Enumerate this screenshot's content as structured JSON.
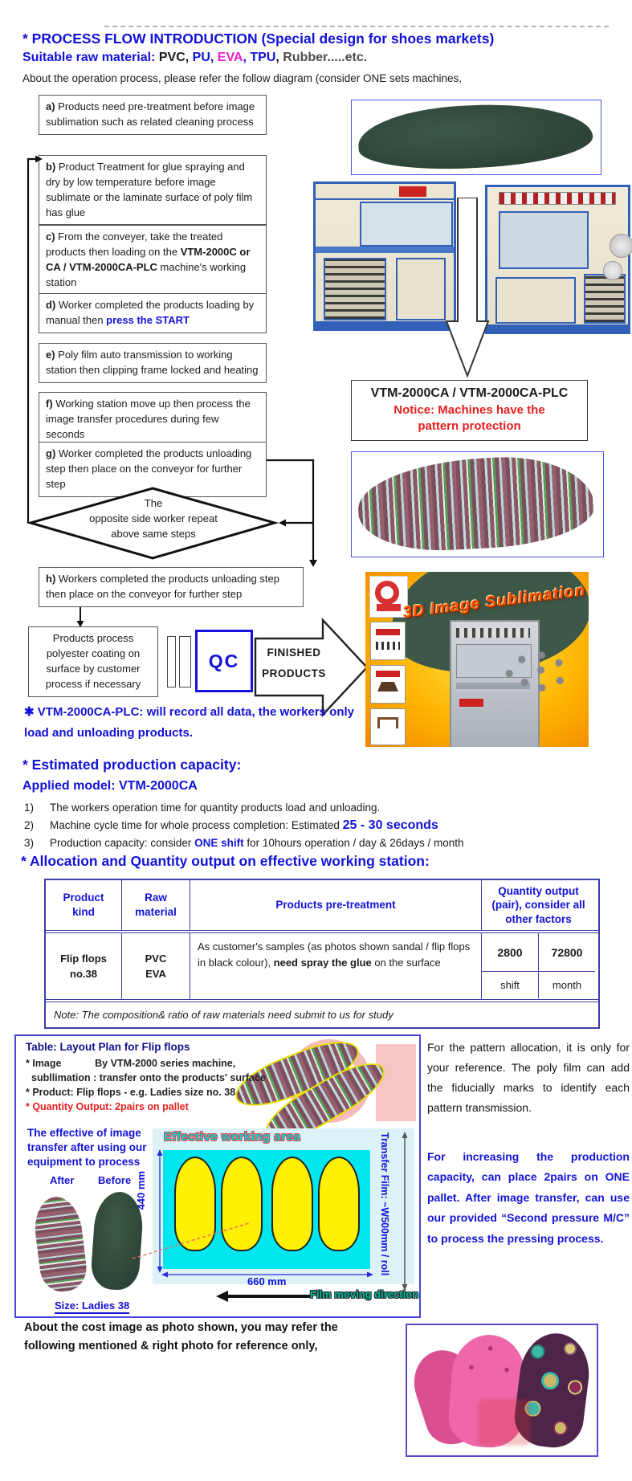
{
  "header": {
    "title": "* PROCESS FLOW INTRODUCTION (Special design for shoes markets)",
    "subtitle_segments": [
      {
        "t": "Suitable raw material: ",
        "s": "blue-b"
      },
      {
        "t": "PVC",
        "s": "b"
      },
      {
        "t": ", ",
        "s": "b"
      },
      {
        "t": "PU",
        "s": "blue-b"
      },
      {
        "t": ", ",
        "s": "blue-b"
      },
      {
        "t": "EVA",
        "s": "mag-b"
      },
      {
        "t": ", ",
        "s": "blue-b"
      },
      {
        "t": "TPU",
        "s": "blue-b"
      },
      {
        "t": ", ",
        "s": "b"
      },
      {
        "t": "Rubber.....etc.",
        "s": "gray-b"
      }
    ],
    "intro": "About the operation process, please refer the follow diagram (consider ONE sets machines,"
  },
  "flowchart": {
    "box_a_segments": [
      {
        "t": "a) ",
        "s": "b"
      },
      {
        "t": "Products need pre-treatment before image sublimation such as related cleaning process",
        "s": "n"
      }
    ],
    "box_b_segments": [
      {
        "t": "b) ",
        "s": "b"
      },
      {
        "t": "Product Treatment for glue spraying and dry by low temperature before image sublimate or the laminate surface of poly film has glue",
        "s": "n"
      }
    ],
    "box_c_segments": [
      {
        "t": "c) ",
        "s": "b"
      },
      {
        "t": "From the conveyer, take the treated products then loading on the ",
        "s": "n"
      },
      {
        "t": "VTM-2000C or CA / VTM-2000CA-PLC",
        "s": "b"
      },
      {
        "t": " machine's working station",
        "s": "n"
      }
    ],
    "box_d_segments": [
      {
        "t": "d) ",
        "s": "b"
      },
      {
        "t": "Worker completed the products loading by manual then ",
        "s": "n"
      },
      {
        "t": "press the START",
        "s": "blue-b"
      }
    ],
    "box_e_segments": [
      {
        "t": "e) ",
        "s": "b"
      },
      {
        "t": "Poly film auto transmission to working station then clipping frame locked and heating",
        "s": "n"
      }
    ],
    "box_f_segments": [
      {
        "t": "f) ",
        "s": "b"
      },
      {
        "t": "Working station move up then process the image transfer procedures during few seconds",
        "s": "n"
      }
    ],
    "box_g_segments": [
      {
        "t": "g) ",
        "s": "b"
      },
      {
        "t": "Worker completed the products unloading step then place on the conveyor for further step",
        "s": "n"
      }
    ],
    "box_h_segments": [
      {
        "t": "h) ",
        "s": "b"
      },
      {
        "t": "Workers completed the products unloading step then place on the conveyor for further step",
        "s": "n"
      }
    ],
    "diamond_line1": "The",
    "diamond_line2": "opposite side worker repeat",
    "diamond_line3": "above same steps",
    "coating_box": "Products process polyester coating on surface by customer process if necessary",
    "qc_label": "QC",
    "finished_line1": "FINISHED",
    "finished_line2": "PRODUCTS",
    "plc_note": "✱ VTM-2000CA-PLC: will record all data, the workers only load and unloading products."
  },
  "right_column": {
    "notice_title": "VTM-2000CA / VTM-2000CA-PLC",
    "notice_warning": "Notice: Machines have the pattern protection",
    "promo_title": "3D Image Sublimation"
  },
  "capacity": {
    "heading": "* Estimated production capacity:",
    "model": "Applied model: VTM-2000CA",
    "item1_num": "1)",
    "item1_segments": [
      {
        "t": "The workers operation time for quantity products load and unloading.",
        "s": "n"
      }
    ],
    "item2_num": "2)",
    "item2_segments": [
      {
        "t": "Machine cycle time for whole process completion: Estimated ",
        "s": "n"
      },
      {
        "t": "25 - 30 seconds",
        "s": "big-blue-b"
      }
    ],
    "item3_num": "3)",
    "item3_segments": [
      {
        "t": "Production capacity: consider ",
        "s": "n"
      },
      {
        "t": "ONE shift",
        "s": "blue-b"
      },
      {
        "t": " for 10hours operation / day & 26days / month",
        "s": "n"
      }
    ],
    "allocation_heading": "* Allocation and Quantity output on effective working station:"
  },
  "table": {
    "col1_header": "Product kind",
    "col2_header": "Raw material",
    "col3_header": "Products pre-treatment",
    "col4_header": "Quantity output (pair), consider all other factors",
    "product_kind": "Flip flops no.38",
    "raw_material_line1": "PVC",
    "raw_material_line2": "EVA",
    "pretreatment_segments": [
      {
        "t": "As customer's samples (as photos shown sandal / flip flops in black colour), ",
        "s": "n"
      },
      {
        "t": "need spray the glue",
        "s": "b"
      },
      {
        "t": " on the surface",
        "s": "n"
      }
    ],
    "qty_shift_value": "2800",
    "qty_month_value": "72800",
    "qty_shift_label": "shift",
    "qty_month_label": "month",
    "note": "Note: The composition& ratio of raw materials need submit to us for study"
  },
  "layout_plan": {
    "title": "Table: Layout Plan for Flip flops",
    "bullet_image_line1": "* Image            By VTM-2000 series machine,",
    "bullet_image_line2": "subllimation : transfer onto the products' surface",
    "bullet_product": "* Product: Flip flops - e.g. Ladies size no. 38",
    "bullet_quantity": "* Quantity Output: 2pairs on pallet",
    "effective_note": "The effective of image transfer after using our equipment to process",
    "after_label": "After",
    "before_label": "Before",
    "size_label": "Size: Ladies 38",
    "working_area_label": "Effective working area",
    "dim_height": "440 mm",
    "dim_width": "660 mm",
    "transfer_film_label": "Transfer Film: ~W500mm / roll",
    "film_direction_label": "Film moving direction"
  },
  "side_paragraphs": {
    "reference": "For the pattern allocation, it is only for your reference. The poly film can add the fiducially marks to identify each pattern transmission.",
    "capacity_tip": "For increasing the production capacity, can place 2pairs on ONE pallet. After image transfer, can use our provided “Second pressure M/C” to process the pressing process."
  },
  "footer": {
    "cost_note": "About the cost image as photo shown, you may refer the following mentioned & right photo for reference only,"
  },
  "colors": {
    "accent_blue": "#1212d8",
    "alert_red": "#e62020",
    "magenta": "#f020c8",
    "working_area_cyan": "#00e6ef",
    "pallet_yellow": "#ffef00"
  }
}
